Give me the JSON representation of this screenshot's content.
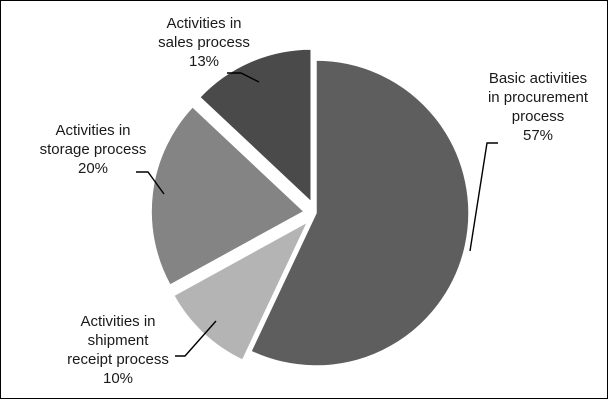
{
  "chart_data": {
    "type": "pie",
    "title": "",
    "slices": [
      {
        "label_lines": [
          "Basic activities",
          "in procurement",
          "process"
        ],
        "pct_label": "57%",
        "value": 57,
        "color": "#5e5e5e",
        "exploded": false
      },
      {
        "label_lines": [
          "Activities in",
          "shipment",
          "receipt process"
        ],
        "pct_label": "10%",
        "value": 10,
        "color": "#b4b4b4",
        "exploded": true
      },
      {
        "label_lines": [
          "Activities in",
          "storage process"
        ],
        "pct_label": "20%",
        "value": 20,
        "color": "#848484",
        "exploded": true
      },
      {
        "label_lines": [
          "Activities in",
          "sales process"
        ],
        "pct_label": "13%",
        "value": 13,
        "color": "#4a4a4a",
        "exploded": true
      }
    ]
  }
}
